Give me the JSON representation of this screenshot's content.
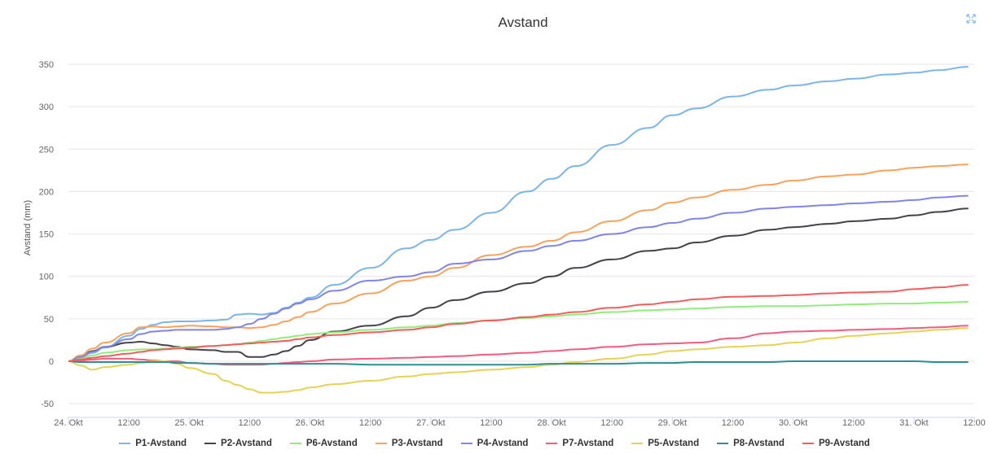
{
  "chart_data": {
    "type": "line",
    "title": "Avstand",
    "ylabel": "Avstand (mm)",
    "xlabel": "",
    "ylim": [
      -55,
      360
    ],
    "yticks": [
      -50,
      0,
      50,
      100,
      150,
      200,
      250,
      300,
      350
    ],
    "xlim": [
      0,
      7.45
    ],
    "xticks": [
      {
        "x": 0.0,
        "label": "24. Okt"
      },
      {
        "x": 0.5,
        "label": "12:00"
      },
      {
        "x": 1.0,
        "label": "25. Okt"
      },
      {
        "x": 1.5,
        "label": "12:00"
      },
      {
        "x": 2.0,
        "label": "26. Okt"
      },
      {
        "x": 2.5,
        "label": "12:00"
      },
      {
        "x": 3.0,
        "label": "27. Okt"
      },
      {
        "x": 3.5,
        "label": "12:00"
      },
      {
        "x": 4.0,
        "label": "28. Okt"
      },
      {
        "x": 4.5,
        "label": "12:00"
      },
      {
        "x": 5.0,
        "label": "29. Okt"
      },
      {
        "x": 5.5,
        "label": "12:00"
      },
      {
        "x": 6.0,
        "label": "30. Okt"
      },
      {
        "x": 6.5,
        "label": "12:00"
      },
      {
        "x": 7.0,
        "label": "31. Okt"
      },
      {
        "x": 7.5,
        "label": "12:00"
      }
    ],
    "grid": true,
    "legend_position": "bottom",
    "x": [
      0.0,
      0.1,
      0.2,
      0.3,
      0.5,
      0.6,
      0.7,
      0.8,
      0.9,
      1.0,
      1.2,
      1.3,
      1.4,
      1.5,
      1.6,
      1.7,
      1.8,
      1.9,
      2.0,
      2.2,
      2.5,
      2.8,
      3.0,
      3.2,
      3.5,
      3.8,
      4.0,
      4.2,
      4.5,
      4.8,
      5.0,
      5.2,
      5.5,
      5.8,
      6.0,
      6.3,
      6.5,
      6.8,
      7.0,
      7.2,
      7.45
    ],
    "series": [
      {
        "name": "P1-Avstand",
        "color": "#7cb5ec",
        "values": [
          0,
          5,
          10,
          16,
          30,
          38,
          43,
          46,
          47,
          47,
          48,
          49,
          55,
          56,
          55,
          57,
          63,
          69,
          75,
          90,
          110,
          133,
          143,
          155,
          175,
          200,
          215,
          230,
          255,
          275,
          290,
          298,
          312,
          320,
          325,
          330,
          333,
          338,
          340,
          343,
          347
        ]
      },
      {
        "name": "P2-Avstand",
        "color": "#434348",
        "values": [
          0,
          5,
          12,
          17,
          22,
          23,
          21,
          19,
          17,
          14,
          13,
          11,
          11,
          5,
          5,
          8,
          12,
          18,
          25,
          35,
          42,
          53,
          63,
          72,
          82,
          92,
          100,
          110,
          120,
          130,
          133,
          140,
          148,
          155,
          158,
          162,
          165,
          168,
          172,
          176,
          180
        ]
      },
      {
        "name": "P6-Avstand",
        "color": "#90ed7d",
        "values": [
          0,
          3,
          7,
          10,
          13,
          14,
          14,
          15,
          16,
          17,
          18,
          19,
          20,
          22,
          24,
          26,
          28,
          30,
          32,
          34,
          37,
          40,
          42,
          45,
          48,
          51,
          53,
          55,
          58,
          60,
          61,
          62,
          64,
          65,
          65,
          66,
          67,
          68,
          68,
          69,
          70
        ]
      },
      {
        "name": "P3-Avstand",
        "color": "#f7a35c",
        "values": [
          0,
          7,
          15,
          22,
          33,
          40,
          41,
          40,
          41,
          42,
          41,
          40,
          40,
          39,
          40,
          43,
          47,
          52,
          58,
          68,
          80,
          95,
          100,
          110,
          125,
          135,
          142,
          152,
          165,
          178,
          187,
          193,
          202,
          208,
          213,
          218,
          220,
          225,
          228,
          230,
          232
        ]
      },
      {
        "name": "P4-Avstand",
        "color": "#8085e9",
        "values": [
          0,
          5,
          11,
          17,
          26,
          32,
          35,
          36,
          37,
          37,
          37,
          38,
          40,
          44,
          50,
          56,
          62,
          68,
          73,
          83,
          95,
          100,
          105,
          115,
          120,
          130,
          136,
          142,
          150,
          158,
          163,
          168,
          175,
          180,
          182,
          184,
          186,
          188,
          190,
          193,
          195
        ]
      },
      {
        "name": "P7-Avstand",
        "color": "#f15c80",
        "values": [
          0,
          1,
          2,
          3,
          3,
          2,
          1,
          0,
          0,
          -2,
          -3,
          -4,
          -4,
          -4,
          -4,
          -3,
          -2,
          -1,
          0,
          2,
          3,
          4,
          5,
          6,
          8,
          10,
          12,
          14,
          17,
          20,
          21,
          22,
          27,
          33,
          35,
          36,
          37,
          38,
          39,
          40,
          42
        ]
      },
      {
        "name": "P5-Avstand",
        "color": "#e4d354",
        "values": [
          0,
          -5,
          -10,
          -7,
          -4,
          -2,
          0,
          0,
          -3,
          -8,
          -15,
          -23,
          -28,
          -33,
          -37,
          -37,
          -36,
          -34,
          -31,
          -27,
          -23,
          -18,
          -15,
          -13,
          -10,
          -7,
          -4,
          -1,
          3,
          8,
          12,
          14,
          17,
          19,
          22,
          27,
          30,
          33,
          35,
          37,
          39
        ]
      },
      {
        "name": "P8-Avstand",
        "color": "#2b908f",
        "values": [
          0,
          -1,
          -1,
          -1,
          -1,
          -1,
          -1,
          -1,
          -2,
          -2,
          -3,
          -3,
          -3,
          -3,
          -3,
          -3,
          -3,
          -3,
          -3,
          -3,
          -4,
          -4,
          -4,
          -4,
          -4,
          -4,
          -3,
          -3,
          -3,
          -2,
          -2,
          -1,
          -1,
          -1,
          0,
          0,
          0,
          0,
          0,
          -1,
          -1
        ]
      },
      {
        "name": "P9-Avstand",
        "color": "#f45b5b",
        "values": [
          0,
          2,
          4,
          6,
          9,
          11,
          13,
          14,
          15,
          16,
          18,
          19,
          20,
          21,
          22,
          23,
          24,
          26,
          28,
          31,
          34,
          37,
          40,
          44,
          48,
          52,
          55,
          58,
          63,
          67,
          70,
          73,
          76,
          77,
          78,
          80,
          81,
          82,
          85,
          87,
          90
        ]
      }
    ]
  },
  "ui": {
    "expand_icon": "expand-icon"
  }
}
